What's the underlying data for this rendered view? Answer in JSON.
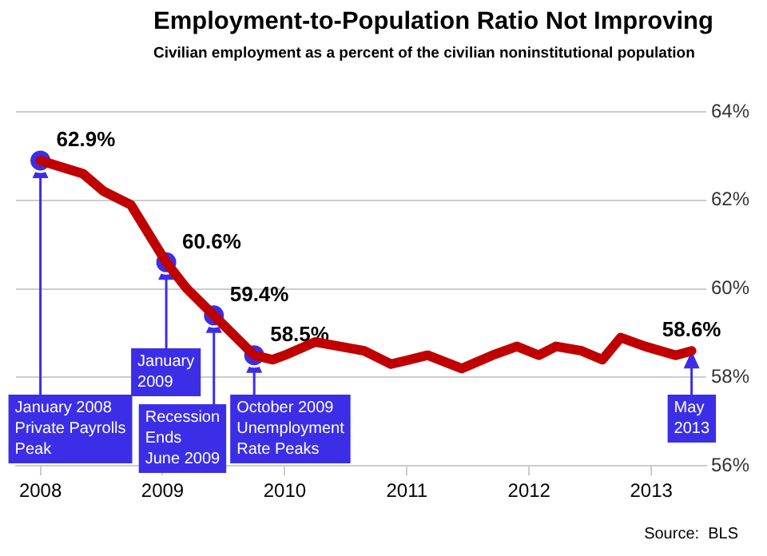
{
  "chart_data": {
    "type": "line",
    "title": "Employment-to-Population Ratio Not Improving",
    "subtitle": "Civilian employment as a percent of the civilian noninstitutional population",
    "xlim": [
      2007.8,
      2013.45
    ],
    "xticks": [
      2008,
      2009,
      2010,
      2011,
      2012,
      2013
    ],
    "ylim": [
      56,
      64
    ],
    "yticks": [
      {
        "value": 56,
        "label": "56%"
      },
      {
        "value": 58,
        "label": "58%"
      },
      {
        "value": 60,
        "label": "60%"
      },
      {
        "value": 62,
        "label": "62%"
      },
      {
        "value": 64,
        "label": "64%"
      }
    ],
    "grid": "y",
    "legend": false,
    "marker": "none",
    "series": [
      {
        "color": "#c00000",
        "value_labels": [
          null,
          null,
          null,
          null,
          null,
          null,
          null,
          null,
          null,
          null,
          null,
          null,
          null,
          null,
          null,
          null,
          null,
          null,
          null,
          null,
          null,
          null,
          null,
          null,
          "58.6%"
        ],
        "x": [
          2008.0,
          2008.35,
          2008.52,
          2008.74,
          2009.03,
          2009.2,
          2009.42,
          2009.75,
          2009.9,
          2010.0,
          2010.25,
          2010.65,
          2010.87,
          2011.17,
          2011.45,
          2011.7,
          2011.9,
          2012.08,
          2012.22,
          2012.43,
          2012.6,
          2012.75,
          2012.95,
          2013.2,
          2013.33
        ],
        "values": [
          62.9,
          62.6,
          62.2,
          61.9,
          60.6,
          60.0,
          59.4,
          58.5,
          58.4,
          58.5,
          58.8,
          58.6,
          58.3,
          58.5,
          58.2,
          58.5,
          58.7,
          58.5,
          58.7,
          58.6,
          58.4,
          58.9,
          58.7,
          58.5,
          58.6
        ]
      },
      {
        "type": "scatter",
        "color": "#3b2ee6",
        "marker": "circle",
        "x": [
          2008.0,
          2009.03,
          2009.42,
          2009.75
        ],
        "values": [
          62.9,
          60.6,
          59.4,
          58.5
        ],
        "value_labels": [
          "62.9%",
          "60.6%",
          "59.4%",
          "58.5%"
        ]
      }
    ],
    "annotations": [
      {
        "text": "January 2008\nPrivate Payrolls\nPeak",
        "x": 2008.0,
        "y": 62.9
      },
      {
        "text": "January\n2009",
        "x": 2009.03,
        "y": 60.6
      },
      {
        "text": "Recession\nEnds\nJune 2009",
        "x": 2009.42,
        "y": 59.4
      },
      {
        "text": "October 2009\nUnemployment\nRate Peaks",
        "x": 2009.75,
        "y": 58.5
      },
      {
        "text": "May\n2013",
        "x": 2013.33,
        "y": 58.6
      },
      "Source:  BLS"
    ]
  }
}
